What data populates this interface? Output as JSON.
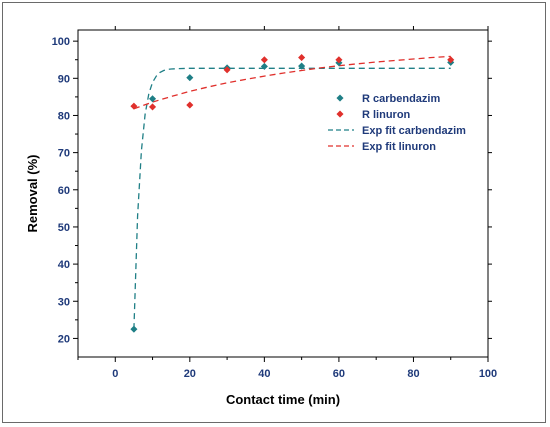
{
  "chart_data": {
    "type": "scatter",
    "xlabel": "Contact time (min)",
    "ylabel": "Removal (%)",
    "xlim": [
      -10,
      100
    ],
    "ylim": [
      15,
      103
    ],
    "xticks": [
      0,
      20,
      40,
      60,
      80,
      100
    ],
    "yticks": [
      20,
      30,
      40,
      50,
      60,
      70,
      80,
      90,
      100
    ],
    "grid": false,
    "legend_position": "right",
    "series": [
      {
        "name": "R carbendazim",
        "kind": "scatter",
        "color": "#1f7f86",
        "x": [
          5,
          10,
          20,
          30,
          40,
          50,
          60,
          90
        ],
        "y": [
          22.5,
          84.5,
          90.2,
          92.8,
          93.2,
          93.3,
          94.2,
          94.3
        ]
      },
      {
        "name": "R linuron",
        "kind": "scatter",
        "color": "#e0302c",
        "x": [
          5,
          10,
          20,
          30,
          40,
          50,
          60,
          90
        ],
        "y": [
          82.5,
          82.3,
          82.8,
          92.3,
          95.0,
          95.6,
          95.0,
          95.0
        ]
      },
      {
        "name": "Exp fit carbendazim",
        "kind": "line",
        "dash": true,
        "color": "#1f7f86",
        "x": [
          5,
          6,
          7,
          8,
          9,
          10,
          11,
          12,
          13,
          14,
          15,
          17,
          20,
          25,
          30,
          40,
          50,
          60,
          70,
          80,
          90
        ],
        "y": [
          22.5,
          53.0,
          70.5,
          80.3,
          85.8,
          88.9,
          90.6,
          91.6,
          92.1,
          92.4,
          92.5,
          92.6,
          92.7,
          92.7,
          92.7,
          92.7,
          92.7,
          92.7,
          92.7,
          92.7,
          92.7
        ]
      },
      {
        "name": "Exp fit linuron",
        "kind": "line",
        "dash": true,
        "color": "#e0302c",
        "x": [
          5,
          10,
          15,
          20,
          25,
          30,
          35,
          40,
          45,
          50,
          55,
          60,
          65,
          70,
          75,
          80,
          85,
          90
        ],
        "y": [
          81.8,
          83.6,
          85.1,
          86.5,
          87.7,
          88.8,
          89.7,
          90.6,
          91.4,
          92.1,
          92.8,
          93.4,
          93.9,
          94.4,
          94.8,
          95.2,
          95.6,
          95.9
        ]
      }
    ]
  }
}
